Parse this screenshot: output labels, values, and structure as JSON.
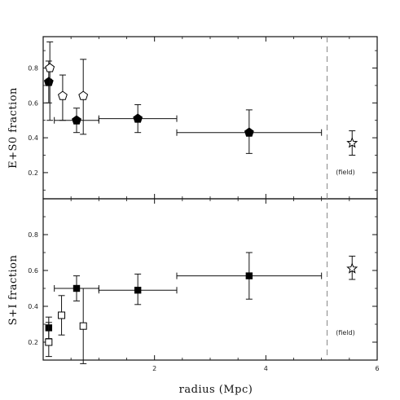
{
  "chart_data": {
    "type": "scatter",
    "xlabel": "radius (Mpc)",
    "xlim": [
      0,
      6
    ],
    "x_ticks": [
      "2",
      "4",
      "6"
    ],
    "x_tick_values": [
      2,
      4,
      6
    ],
    "field_divider_x": 5.1,
    "field_label": "(field)",
    "panels": [
      {
        "id": "top",
        "ylabel": "E+S0 fraction",
        "ylim": [
          0.05,
          0.98
        ],
        "y_ticks": [
          "0.2",
          "0.4",
          "0.6",
          "0.8"
        ],
        "y_tick_values": [
          0.2,
          0.4,
          0.6,
          0.8
        ],
        "series": [
          {
            "marker": "pentagon-filled",
            "points": [
              {
                "x": 0.1,
                "y": 0.72,
                "ylo": 0.6,
                "yhi": 0.84,
                "xlo": 0.05,
                "xhi": 0.15
              },
              {
                "x": 0.6,
                "y": 0.5,
                "ylo": 0.43,
                "yhi": 0.57,
                "xlo": 0.2,
                "xhi": 1.0
              },
              {
                "x": 1.7,
                "y": 0.51,
                "ylo": 0.43,
                "yhi": 0.59,
                "xlo": 1.0,
                "xhi": 2.4
              },
              {
                "x": 3.7,
                "y": 0.43,
                "ylo": 0.31,
                "yhi": 0.56,
                "xlo": 2.4,
                "xhi": 5.0
              }
            ]
          },
          {
            "marker": "pentagon-open",
            "points": [
              {
                "x": 0.12,
                "y": 0.8,
                "ylo": 0.5,
                "yhi": 0.95
              },
              {
                "x": 0.35,
                "y": 0.64,
                "ylo": 0.5,
                "yhi": 0.76
              },
              {
                "x": 0.72,
                "y": 0.64,
                "ylo": 0.42,
                "yhi": 0.85
              }
            ]
          },
          {
            "marker": "star-open",
            "points": [
              {
                "x": 5.55,
                "y": 0.37,
                "ylo": 0.3,
                "yhi": 0.44
              }
            ]
          }
        ]
      },
      {
        "id": "bottom",
        "ylabel": "S+I fraction",
        "ylim": [
          0.1,
          1.0
        ],
        "y_ticks": [
          "0.2",
          "0.4",
          "0.6",
          "0.8"
        ],
        "y_tick_values": [
          0.2,
          0.4,
          0.6,
          0.8
        ],
        "series": [
          {
            "marker": "square-filled",
            "points": [
              {
                "x": 0.1,
                "y": 0.28,
                "ylo": 0.22,
                "yhi": 0.34,
                "xlo": 0.05,
                "xhi": 0.15
              },
              {
                "x": 0.6,
                "y": 0.5,
                "ylo": 0.43,
                "yhi": 0.57,
                "xlo": 0.2,
                "xhi": 1.0
              },
              {
                "x": 1.7,
                "y": 0.49,
                "ylo": 0.41,
                "yhi": 0.58,
                "xlo": 1.0,
                "xhi": 2.4
              },
              {
                "x": 3.7,
                "y": 0.57,
                "ylo": 0.44,
                "yhi": 0.7,
                "xlo": 2.4,
                "xhi": 5.0
              }
            ]
          },
          {
            "marker": "square-open",
            "points": [
              {
                "x": 0.1,
                "y": 0.2,
                "ylo": 0.12,
                "yhi": 0.31
              },
              {
                "x": 0.33,
                "y": 0.35,
                "ylo": 0.24,
                "yhi": 0.46
              },
              {
                "x": 0.72,
                "y": 0.29,
                "ylo": 0.08,
                "yhi": 0.5
              }
            ]
          },
          {
            "marker": "star-open",
            "points": [
              {
                "x": 5.55,
                "y": 0.61,
                "ylo": 0.55,
                "yhi": 0.68
              }
            ]
          }
        ]
      }
    ]
  }
}
